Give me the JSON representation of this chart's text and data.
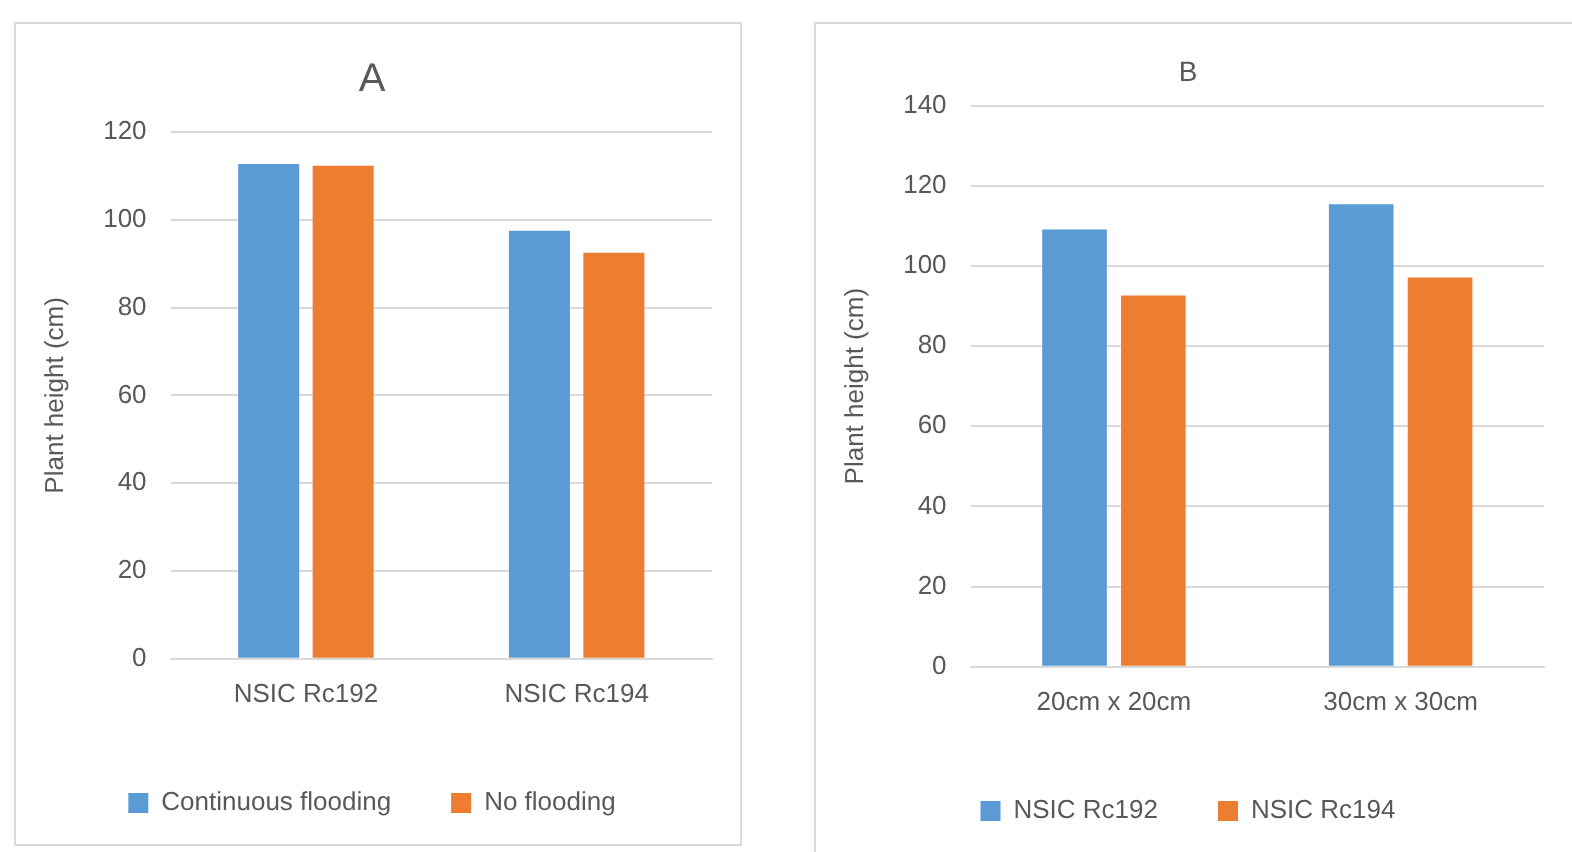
{
  "chart_data": [
    {
      "type": "bar",
      "title": "A",
      "ylabel": "Plant height (cm)",
      "categories": [
        "NSIC Rc192",
        "NSIC Rc194"
      ],
      "series": [
        {
          "name": "Continuous flooding",
          "color": "#5b9bd5",
          "values": [
            112.7,
            97.5
          ]
        },
        {
          "name": "No flooding",
          "color": "#ed7d31",
          "values": [
            112.3,
            92.5
          ]
        }
      ],
      "ylim": [
        0,
        120
      ],
      "yticks": [
        0,
        20,
        40,
        60,
        80,
        100,
        120
      ],
      "grid": "y",
      "legend": "bottom"
    },
    {
      "type": "bar",
      "title": "B",
      "ylabel": "Plant height (cm)",
      "categories": [
        "20cm x 20cm",
        "30cm x 30cm"
      ],
      "series": [
        {
          "name": "NSIC Rc192",
          "color": "#5b9bd5",
          "values": [
            109.1,
            115.4
          ]
        },
        {
          "name": "NSIC Rc194",
          "color": "#ed7d31",
          "values": [
            92.6,
            97.1
          ]
        }
      ],
      "ylim": [
        0,
        140
      ],
      "yticks": [
        0,
        20,
        40,
        60,
        80,
        100,
        120,
        140
      ],
      "grid": "y",
      "legend": "bottom"
    }
  ]
}
